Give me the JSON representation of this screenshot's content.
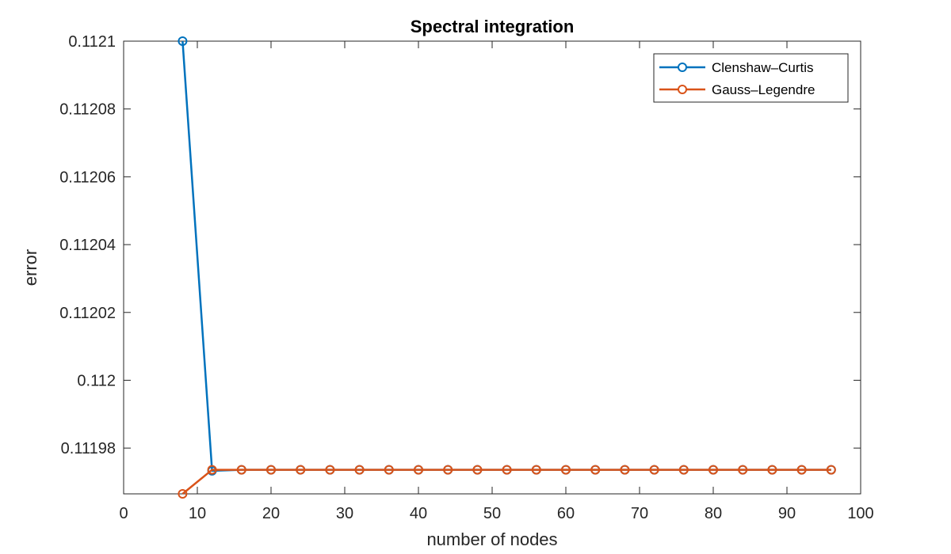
{
  "chart_data": {
    "type": "line",
    "title": "Spectral integration",
    "xlabel": "number of nodes",
    "ylabel": "error",
    "xlim": [
      0,
      100
    ],
    "ylim": [
      111966.5,
      112100
    ],
    "y_display_scale": 1e-06,
    "xticks": [
      0,
      10,
      20,
      30,
      40,
      50,
      60,
      70,
      80,
      90,
      100
    ],
    "xtick_labels": [
      "0",
      "10",
      "20",
      "30",
      "40",
      "50",
      "60",
      "70",
      "80",
      "90",
      "100"
    ],
    "yticks": [
      111980,
      112000,
      112020,
      112040,
      112060,
      112080,
      112100
    ],
    "ytick_labels": [
      "0.11198",
      "0.112",
      "0.11202",
      "0.11204",
      "0.11206",
      "0.11208",
      "0.1121"
    ],
    "grid": false,
    "legend_position": "top-right",
    "x": [
      8,
      12,
      16,
      20,
      24,
      28,
      32,
      36,
      40,
      44,
      48,
      52,
      56,
      60,
      64,
      68,
      72,
      76,
      80,
      84,
      88,
      92,
      96
    ],
    "series": [
      {
        "name": "Clenshaw–Curtis",
        "color": "#0072BD",
        "marker": "circle",
        "values": [
          112100,
          111973.3,
          111973.6,
          111973.6,
          111973.6,
          111973.6,
          111973.6,
          111973.6,
          111973.6,
          111973.6,
          111973.6,
          111973.6,
          111973.6,
          111973.6,
          111973.6,
          111973.6,
          111973.6,
          111973.6,
          111973.6,
          111973.6,
          111973.6,
          111973.6,
          111973.6
        ]
      },
      {
        "name": "Gauss–Legendre",
        "color": "#D95319",
        "marker": "circle",
        "values": [
          111966.5,
          111973.6,
          111973.6,
          111973.6,
          111973.6,
          111973.6,
          111973.6,
          111973.6,
          111973.6,
          111973.6,
          111973.6,
          111973.6,
          111973.6,
          111973.6,
          111973.6,
          111973.6,
          111973.6,
          111973.6,
          111973.6,
          111973.6,
          111973.6,
          111973.6,
          111973.6
        ]
      }
    ]
  }
}
